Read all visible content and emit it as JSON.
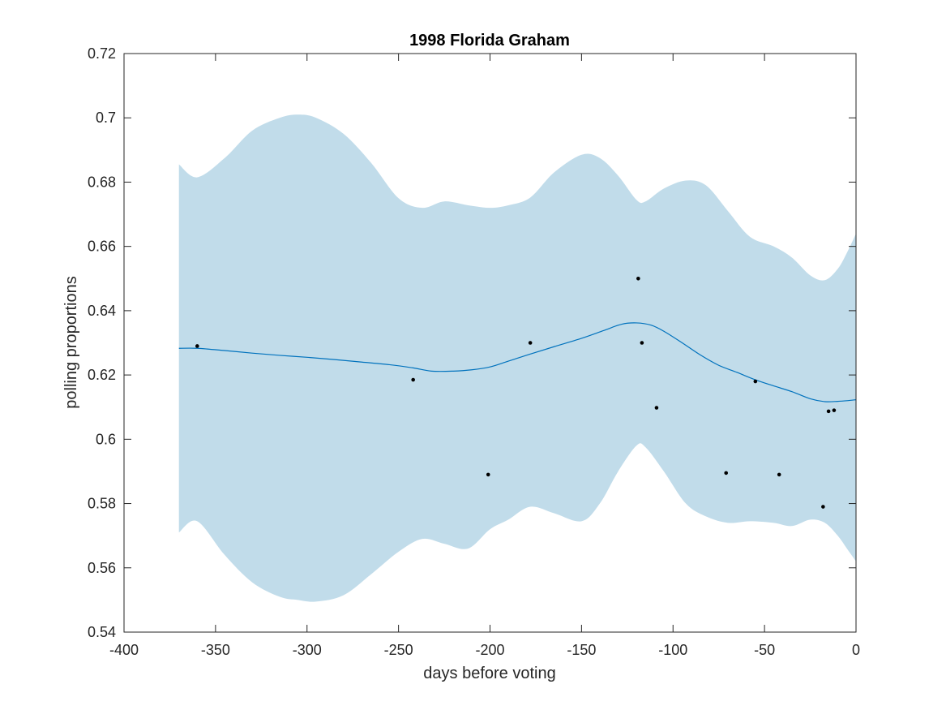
{
  "chart_data": {
    "type": "line",
    "title": "1998 Florida Graham",
    "xlabel": "days before voting",
    "ylabel": "polling proportions",
    "xlim": [
      -400,
      0
    ],
    "ylim": [
      0.54,
      0.72
    ],
    "xticks": [
      -400,
      -350,
      -300,
      -250,
      -200,
      -150,
      -100,
      -50,
      0
    ],
    "xtick_labels": [
      "-400",
      "-350",
      "-300",
      "-250",
      "-200",
      "-150",
      "-100",
      "-50",
      "0"
    ],
    "yticks": [
      0.54,
      0.56,
      0.58,
      0.6,
      0.62,
      0.64,
      0.66,
      0.68,
      0.7,
      0.72
    ],
    "ytick_labels": [
      "0.54",
      "0.56",
      "0.58",
      "0.6",
      "0.62",
      "0.64",
      "0.66",
      "0.68",
      "0.7",
      "0.72"
    ],
    "grid": false,
    "colors": {
      "band": "#c1dcea",
      "line": "#0072bd",
      "points": "#000000"
    },
    "band": {
      "x": [
        -370,
        -360,
        -345,
        -330,
        -315,
        -305,
        -295,
        -280,
        -265,
        -250,
        -237,
        -225,
        -212,
        -200,
        -190,
        -178,
        -165,
        -150,
        -140,
        -130,
        -120,
        -115,
        -105,
        -93,
        -82,
        -70,
        -58,
        -45,
        -35,
        -25,
        -17,
        -10,
        -5,
        0
      ],
      "upper": [
        0.6855,
        0.6815,
        0.6875,
        0.696,
        0.7,
        0.701,
        0.7,
        0.695,
        0.686,
        0.675,
        0.672,
        0.674,
        0.6728,
        0.672,
        0.6728,
        0.6752,
        0.683,
        0.6885,
        0.6875,
        0.682,
        0.6745,
        0.674,
        0.678,
        0.6805,
        0.679,
        0.671,
        0.663,
        0.66,
        0.6565,
        0.651,
        0.6495,
        0.653,
        0.658,
        0.664
      ],
      "lower": [
        0.571,
        0.5745,
        0.564,
        0.5555,
        0.551,
        0.55,
        0.5495,
        0.5515,
        0.558,
        0.565,
        0.569,
        0.5675,
        0.566,
        0.572,
        0.575,
        0.579,
        0.577,
        0.5745,
        0.58,
        0.59,
        0.598,
        0.5975,
        0.59,
        0.58,
        0.576,
        0.574,
        0.5745,
        0.574,
        0.573,
        0.575,
        0.574,
        0.57,
        0.566,
        0.562
      ]
    },
    "series": [
      {
        "x": [
          -370,
          -360,
          -345,
          -330,
          -315,
          -300,
          -285,
          -270,
          -255,
          -242,
          -232,
          -220,
          -210,
          -200,
          -190,
          -178,
          -165,
          -150,
          -138,
          -128,
          -120,
          -112,
          -105,
          -95,
          -85,
          -75,
          -65,
          -55,
          -45,
          -35,
          -25,
          -17,
          -10,
          -5,
          0
        ],
        "values": [
          0.6283,
          0.6283,
          0.6276,
          0.6268,
          0.6261,
          0.6255,
          0.6248,
          0.624,
          0.6232,
          0.6222,
          0.6212,
          0.6212,
          0.6216,
          0.6225,
          0.6243,
          0.6265,
          0.6288,
          0.6314,
          0.6338,
          0.6358,
          0.6362,
          0.6355,
          0.6336,
          0.63,
          0.6262,
          0.623,
          0.6208,
          0.6185,
          0.6166,
          0.6148,
          0.6126,
          0.6117,
          0.6118,
          0.612,
          0.6123
        ]
      }
    ],
    "points": {
      "x": [
        -360,
        -242,
        -201,
        -178,
        -119,
        -117,
        -109,
        -71,
        -55,
        -42,
        -18,
        -15,
        -12
      ],
      "y": [
        0.629,
        0.6185,
        0.589,
        0.63,
        0.65,
        0.63,
        0.6098,
        0.5895,
        0.618,
        0.589,
        0.579,
        0.6087,
        0.609
      ]
    }
  }
}
